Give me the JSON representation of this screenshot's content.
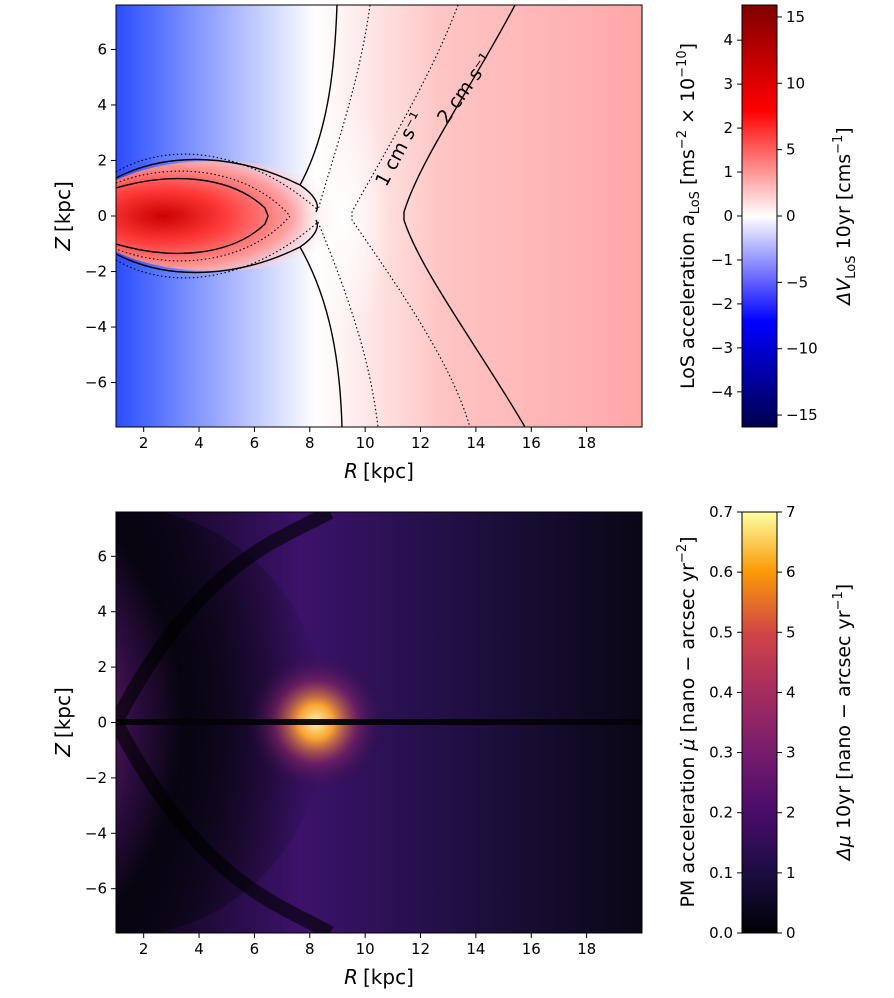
{
  "chart_data": [
    {
      "type": "heatmap",
      "panel": "top",
      "xlabel_sym": "R",
      "xlabel_unit": "[kpc]",
      "ylabel_sym": "Z",
      "ylabel_unit": "[kpc]",
      "xlim": [
        1,
        20
      ],
      "ylim": [
        -7.6,
        7.6
      ],
      "x_ticks": [
        2,
        4,
        6,
        8,
        10,
        12,
        14,
        16,
        18
      ],
      "y_ticks": [
        -6,
        -4,
        -2,
        0,
        2,
        4,
        6
      ],
      "y_tick_labels": [
        "−6",
        "−4",
        "−2",
        "0",
        "2",
        "4",
        "6"
      ],
      "colormap": "seismic",
      "contour_labels": [
        "1 cm s⁻¹",
        "2 cm s⁻¹"
      ],
      "colorbar": {
        "left_label_text": "LoS acceleration ",
        "left_label_sym": "a",
        "left_label_sub": "LoS",
        "left_label_unit_a": " [ms",
        "left_label_unit_exp": "−2",
        "left_label_unit_b": " × 10",
        "left_label_unit_exp2": "−10",
        "left_label_unit_c": "]",
        "left_range": [
          -4.8,
          4.8
        ],
        "left_ticks": [
          -4,
          -3,
          -2,
          -1,
          0,
          1,
          2,
          3,
          4
        ],
        "left_tick_labels": [
          "−4",
          "−3",
          "−2",
          "−1",
          "0",
          "1",
          "2",
          "3",
          "4"
        ],
        "right_label_sym": "ΔV",
        "right_label_sub": "LoS",
        "right_label_mid": " 10yr [cms",
        "right_label_exp": "−1",
        "right_label_end": "]",
        "right_range": [
          -15.9,
          15.9
        ],
        "right_ticks": [
          -15,
          -10,
          -5,
          0,
          5,
          10,
          15
        ],
        "right_tick_labels": [
          "−15",
          "−10",
          "−5",
          "0",
          "5",
          "10",
          "15"
        ]
      }
    },
    {
      "type": "heatmap",
      "panel": "bottom",
      "xlabel_sym": "R",
      "xlabel_unit": "[kpc]",
      "ylabel_sym": "Z",
      "ylabel_unit": "[kpc]",
      "xlim": [
        1,
        20
      ],
      "ylim": [
        -7.6,
        7.6
      ],
      "x_ticks": [
        2,
        4,
        6,
        8,
        10,
        12,
        14,
        16,
        18
      ],
      "y_ticks": [
        -6,
        -4,
        -2,
        0,
        2,
        4,
        6
      ],
      "y_tick_labels": [
        "−6",
        "−4",
        "−2",
        "0",
        "2",
        "4",
        "6"
      ],
      "colormap": "inferno",
      "colorbar": {
        "left_label_text": "PM acceleration ",
        "left_label_sym": "μ̇",
        "left_label_unit": " [nano − arcsec yr",
        "left_label_exp": "−2",
        "left_label_end": "]",
        "left_range": [
          0,
          0.7
        ],
        "left_ticks": [
          0.0,
          0.1,
          0.2,
          0.3,
          0.4,
          0.5,
          0.6,
          0.7
        ],
        "left_tick_labels": [
          "0.0",
          "0.1",
          "0.2",
          "0.3",
          "0.4",
          "0.5",
          "0.6",
          "0.7"
        ],
        "right_label_sym": "Δμ",
        "right_label_mid": " 10yr [nano − arcsec yr",
        "right_label_exp": "−1",
        "right_label_end": "]",
        "right_range": [
          0,
          7
        ],
        "right_ticks": [
          0,
          1,
          2,
          3,
          4,
          5,
          6,
          7
        ],
        "right_tick_labels": [
          "0",
          "1",
          "2",
          "3",
          "4",
          "5",
          "6",
          "7"
        ]
      }
    }
  ]
}
